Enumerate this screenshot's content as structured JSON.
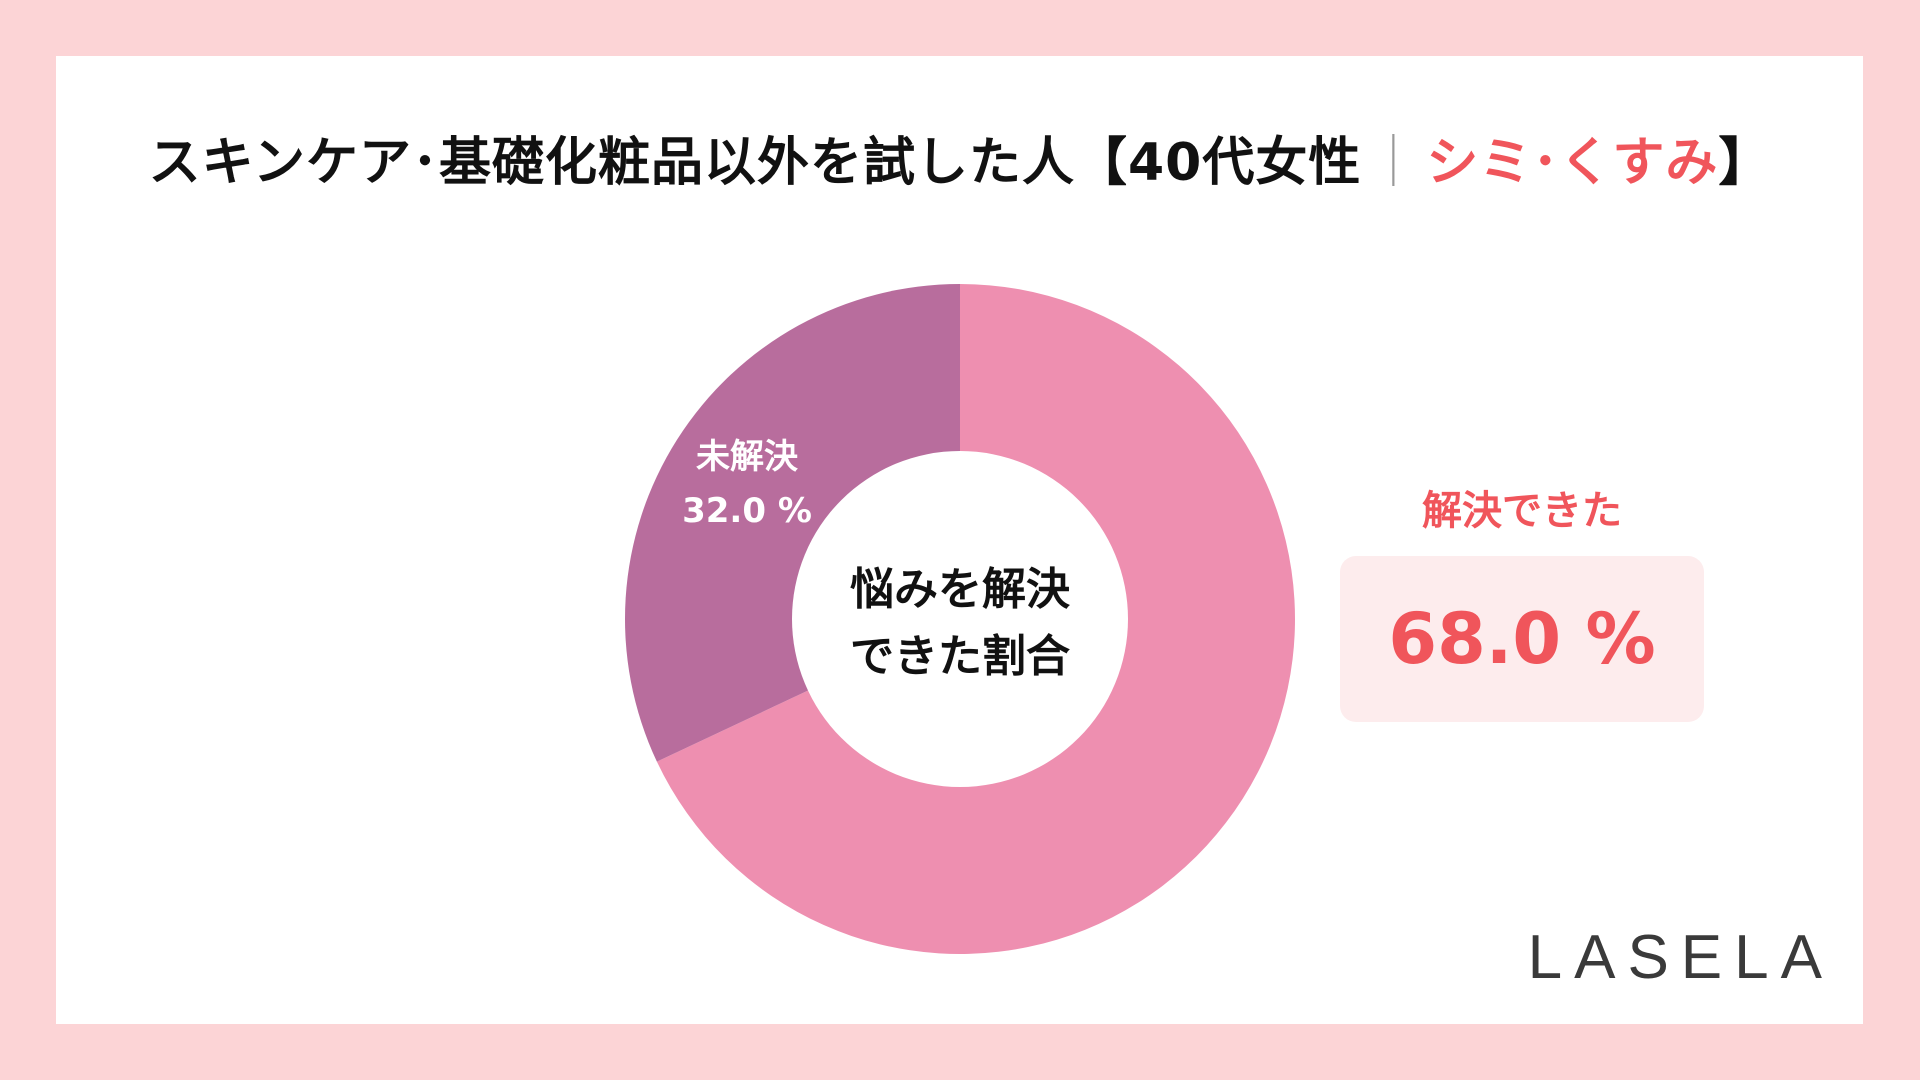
{
  "title": {
    "main": "スキンケア･基礎化粧品以外を試した人【40代女性",
    "separator": "｜",
    "highlight": "シミ･くすみ",
    "end": "】"
  },
  "center_label": {
    "line1": "悩みを解決",
    "line2": "できた割合"
  },
  "result": {
    "label": "解決できた",
    "value": "68.0 %"
  },
  "brand": "LASELA",
  "colors": {
    "background": "#fcd4d6",
    "solved": "#ee8fb0",
    "unsolved": "#b86d9d",
    "accent": "#f0555b"
  },
  "chart_data": {
    "type": "pie",
    "donut": true,
    "categories": [
      "解決できた",
      "未解決"
    ],
    "values": [
      68.0,
      32.0
    ],
    "value_labels": [
      "",
      "32.0 %"
    ],
    "legend": "none"
  }
}
